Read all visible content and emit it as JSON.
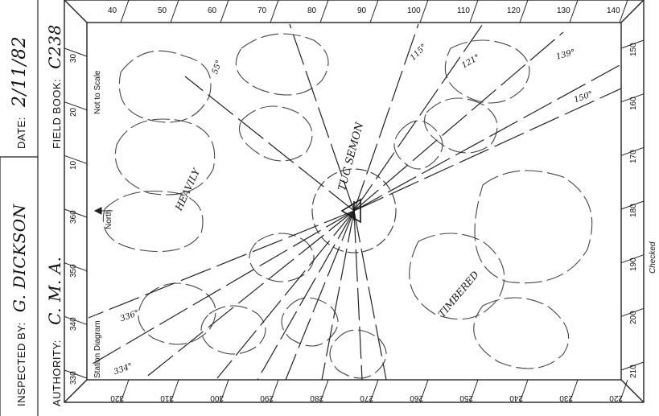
{
  "form": {
    "inspected_by_label": "INSPECTED BY:",
    "inspected_by_value": "G. DICKSON",
    "authority_label": "AUTHORITY:",
    "authority_value": "C. M. A.",
    "date_label": "DATE:",
    "date_value": "2/11/82",
    "field_book_label": "FIELD BOOK:",
    "field_book_value": "C238"
  },
  "diagram": {
    "station_label": "Station Diagram",
    "scale_note": "Not to Scale",
    "north_label": "North",
    "checked_label": "Checked",
    "station_name": "TUC SEMON",
    "annotations": {
      "heavily": "HEAVILY",
      "timbered": "TIMBERED",
      "azimuth_label_115": "115°",
      "azimuth_label_121": "121°",
      "azimuth_label_139": "139°",
      "azimuth_label_150": "150°",
      "azimuth_label_55": "55°",
      "azimuth_label_336": "336°",
      "azimuth_label_334": "334°"
    },
    "top_ticks": [
      "40",
      "50",
      "60",
      "70",
      "80",
      "90",
      "100",
      "110",
      "120",
      "130",
      "140"
    ],
    "right_ticks": [
      "150",
      "160",
      "170",
      "180",
      "190",
      "200",
      "210"
    ],
    "bottom_ticks": [
      "320",
      "310",
      "300",
      "290",
      "280",
      "270",
      "260",
      "250",
      "240",
      "230",
      "220"
    ],
    "left_ticks": [
      "30",
      "20",
      "10",
      "360",
      "350",
      "340",
      "330"
    ]
  }
}
